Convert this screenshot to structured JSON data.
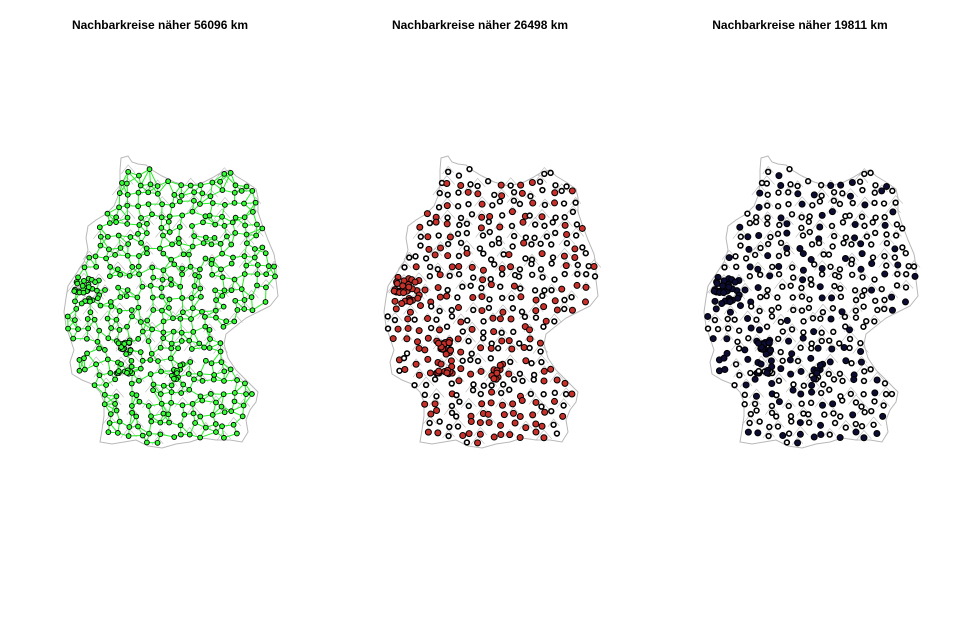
{
  "panels": [
    {
      "title": "Nachbarkreise näher 56096 km",
      "style": "network",
      "node_fill": "#33ff33",
      "edge_color": "#22ee22",
      "accent": "#33ff33"
    },
    {
      "title": "Nachbarkreise näher 26498 km",
      "style": "highlight",
      "node_fill": "#c8302a",
      "accent": "#c8302a"
    },
    {
      "title": "Nachbarkreise näher 19811 km",
      "style": "highlight",
      "node_fill": "#0d0d33",
      "accent": "#0d0d33"
    }
  ],
  "colors": {
    "border": "#b8b8b8",
    "ring": "#000000",
    "background": "#ffffff"
  }
}
